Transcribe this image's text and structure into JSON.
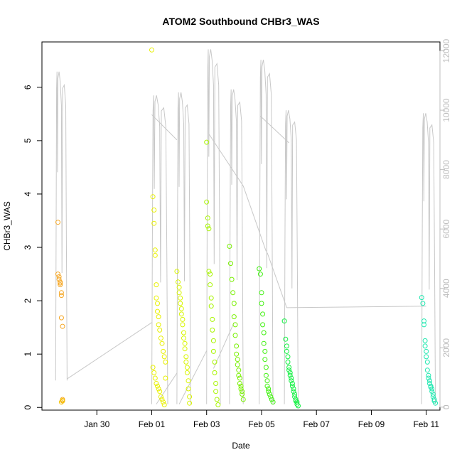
{
  "chart_data": {
    "type": "scatter",
    "title": "ATOM2 Southbound CHBr3_WAS",
    "xlabel": "Date",
    "ylabel": "CHBr3_WAS",
    "x_unit": "days",
    "xlim": [
      "2017-01-28T00:00",
      "2017-02-11T12:00"
    ],
    "ylim": [
      -0.05,
      6.85
    ],
    "y2lim": [
      -100,
      12300
    ],
    "x_ticks": [
      {
        "value": "2017-01-30",
        "label": "Jan 30"
      },
      {
        "value": "2017-02-01",
        "label": "Feb 01"
      },
      {
        "value": "2017-02-03",
        "label": "Feb 03"
      },
      {
        "value": "2017-02-05",
        "label": "Feb 05"
      },
      {
        "value": "2017-02-07",
        "label": "Feb 07"
      },
      {
        "value": "2017-02-09",
        "label": "Feb 09"
      },
      {
        "value": "2017-02-11",
        "label": "Feb 11"
      }
    ],
    "y_ticks": [
      "0",
      "1",
      "2",
      "3",
      "4",
      "5",
      "6"
    ],
    "y2_ticks": [
      "0",
      "2000",
      "4000",
      "6000",
      "8000",
      "10000",
      "12000"
    ],
    "altitude_series": {
      "color": "#c8c8c8",
      "segments": [
        {
          "start": "2017-01-28T12:00",
          "end": "2017-01-28T22:00",
          "peak": 11300,
          "base": 900
        },
        {
          "start": "2017-02-01T00:00",
          "end": "2017-02-01T14:00",
          "peak": 10500,
          "base": 100
        },
        {
          "start": "2017-02-01T22:00",
          "end": "2017-02-02T10:00",
          "peak": 10600,
          "base": 100
        },
        {
          "start": "2017-02-03T00:00",
          "end": "2017-02-03T12:00",
          "peak": 12050,
          "base": 100
        },
        {
          "start": "2017-02-03T20:00",
          "end": "2017-02-04T08:00",
          "peak": 10700,
          "base": 100
        },
        {
          "start": "2017-02-04T22:00",
          "end": "2017-02-05T10:00",
          "peak": 11700,
          "base": 100
        },
        {
          "start": "2017-02-05T20:00",
          "end": "2017-02-06T08:00",
          "peak": 10000,
          "base": 100
        },
        {
          "start": "2017-02-10T20:00",
          "end": "2017-02-11T08:00",
          "peak": 9900,
          "base": 100
        }
      ],
      "connectors": [
        {
          "from": "2017-01-28T22:00",
          "from_alt": 950,
          "to": "2017-02-01T00:00",
          "to_alt": 2850
        },
        {
          "from": "2017-02-01T00:00",
          "from_alt": 9850,
          "to": "2017-02-01T22:00",
          "to_alt": 9000
        },
        {
          "from": "2017-02-01T04:00",
          "from_alt": 100,
          "to": "2017-02-01T22:00",
          "to_alt": 1150
        },
        {
          "from": "2017-02-02T00:00",
          "from_alt": 100,
          "to": "2017-02-03T00:00",
          "to_alt": 1900
        },
        {
          "from": "2017-02-03T02:00",
          "from_alt": 9200,
          "to": "2017-02-04T08:00",
          "to_alt": 7450
        },
        {
          "from": "2017-02-03T06:00",
          "from_alt": 1300,
          "to": "2017-02-04T00:00",
          "to_alt": 2850
        },
        {
          "from": "2017-02-04T08:00",
          "from_alt": 7450,
          "to": "2017-02-05T04:00",
          "to_alt": 5250
        },
        {
          "from": "2017-02-04T23:00",
          "from_alt": 9800,
          "to": "2017-02-06T00:00",
          "to_alt": 8900
        },
        {
          "from": "2017-02-05T05:00",
          "from_alt": 5200,
          "to": "2017-02-05T22:00",
          "to_alt": 3350
        },
        {
          "from": "2017-02-05T22:00",
          "from_alt": 3350,
          "to": "2017-02-11T00:00",
          "to_alt": 3400
        }
      ]
    },
    "point_groups": [
      {
        "color": "#f5a623",
        "x": [
          "2017-01-28T14:00",
          "2017-01-28T14:00",
          "2017-01-28T15:00",
          "2017-01-28T15:00",
          "2017-01-28T16:00",
          "2017-01-28T16:00",
          "2017-01-28T16:00",
          "2017-01-28T17:00",
          "2017-01-28T17:00",
          "2017-01-28T17:00",
          "2017-01-28T18:00",
          "2017-01-28T18:00",
          "2017-01-28T18:00"
        ],
        "y": [
          3.47,
          2.5,
          2.45,
          2.4,
          2.35,
          2.3,
          2.33,
          2.15,
          2.1,
          1.68,
          1.52,
          0.15,
          0.12
        ]
      },
      {
        "color": "#f5c400",
        "x": [
          "2017-01-28T17:00",
          "2017-01-28T18:00"
        ],
        "y": [
          0.1,
          0.13
        ]
      },
      {
        "color": "#e8f000",
        "x": [
          "2017-02-01T00:00",
          "2017-02-01T01:00",
          "2017-02-01T02:00",
          "2017-02-01T02:00",
          "2017-02-01T03:00",
          "2017-02-01T03:00",
          "2017-02-01T04:00",
          "2017-02-01T04:00",
          "2017-02-01T05:00",
          "2017-02-01T05:00",
          "2017-02-01T06:00",
          "2017-02-01T06:00",
          "2017-02-01T07:00",
          "2017-02-01T08:00",
          "2017-02-01T09:00",
          "2017-02-01T10:00",
          "2017-02-01T11:00",
          "2017-02-01T12:00",
          "2017-02-01T01:00",
          "2017-02-01T02:00",
          "2017-02-01T03:00",
          "2017-02-01T04:00",
          "2017-02-01T05:00",
          "2017-02-01T06:00",
          "2017-02-01T07:00",
          "2017-02-01T08:00",
          "2017-02-01T09:00",
          "2017-02-01T10:00",
          "2017-02-01T11:00",
          "2017-02-01T12:00"
        ],
        "y": [
          6.7,
          3.95,
          3.7,
          3.45,
          2.95,
          2.85,
          2.3,
          2.05,
          1.95,
          1.8,
          1.7,
          1.55,
          1.45,
          1.3,
          1.2,
          1.05,
          0.95,
          0.85,
          0.75,
          0.65,
          0.55,
          0.45,
          0.4,
          0.35,
          0.3,
          0.2,
          0.15,
          0.1,
          0.05,
          0.55
        ]
      },
      {
        "color": "#d8f500",
        "x": [
          "2017-02-01T22:00",
          "2017-02-01T23:00",
          "2017-02-02T00:00",
          "2017-02-02T00:00",
          "2017-02-02T01:00",
          "2017-02-02T01:00",
          "2017-02-02T02:00",
          "2017-02-02T02:00",
          "2017-02-02T03:00",
          "2017-02-02T03:00",
          "2017-02-02T04:00",
          "2017-02-02T04:00",
          "2017-02-02T05:00",
          "2017-02-02T05:00",
          "2017-02-02T06:00",
          "2017-02-02T06:00",
          "2017-02-02T07:00",
          "2017-02-02T07:00",
          "2017-02-02T08:00",
          "2017-02-02T08:00",
          "2017-02-02T09:00",
          "2017-02-02T09:00"
        ],
        "y": [
          2.55,
          2.35,
          2.25,
          2.15,
          2.05,
          1.95,
          1.85,
          1.75,
          1.65,
          1.55,
          1.4,
          1.3,
          1.2,
          1.1,
          0.95,
          0.85,
          0.75,
          0.65,
          0.5,
          0.35,
          0.2,
          0.08
        ]
      },
      {
        "color": "#a8f500",
        "x": [
          "2017-02-03T00:00",
          "2017-02-03T00:00",
          "2017-02-03T01:00",
          "2017-02-03T01:00",
          "2017-02-03T02:00",
          "2017-02-03T02:00",
          "2017-02-03T03:00",
          "2017-02-03T03:00",
          "2017-02-03T04:00",
          "2017-02-03T04:00",
          "2017-02-03T05:00",
          "2017-02-03T05:00",
          "2017-02-03T06:00",
          "2017-02-03T06:00",
          "2017-02-03T07:00",
          "2017-02-03T07:00",
          "2017-02-03T08:00",
          "2017-02-03T08:00",
          "2017-02-03T09:00",
          "2017-02-03T10:00"
        ],
        "y": [
          4.97,
          3.85,
          3.55,
          3.4,
          3.35,
          2.55,
          2.5,
          2.3,
          2.05,
          1.9,
          1.65,
          1.45,
          1.25,
          1.05,
          0.85,
          0.65,
          0.45,
          0.3,
          0.15,
          0.05
        ]
      },
      {
        "color": "#78f000",
        "x": [
          "2017-02-03T20:00",
          "2017-02-03T21:00",
          "2017-02-03T22:00",
          "2017-02-03T23:00",
          "2017-02-04T00:00",
          "2017-02-04T00:00",
          "2017-02-04T01:00",
          "2017-02-04T01:00",
          "2017-02-04T02:00",
          "2017-02-04T02:00",
          "2017-02-04T03:00",
          "2017-02-04T03:00",
          "2017-02-04T04:00",
          "2017-02-04T04:00",
          "2017-02-04T05:00",
          "2017-02-04T05:00",
          "2017-02-04T06:00",
          "2017-02-04T06:00",
          "2017-02-04T07:00",
          "2017-02-04T07:00",
          "2017-02-04T08:00"
        ],
        "y": [
          3.02,
          2.7,
          2.4,
          2.15,
          1.95,
          1.7,
          1.55,
          1.35,
          1.15,
          1.0,
          0.9,
          0.8,
          0.7,
          0.6,
          0.55,
          0.45,
          0.4,
          0.35,
          0.3,
          0.25,
          0.15
        ]
      },
      {
        "color": "#40f010",
        "x": [
          "2017-02-04T22:00",
          "2017-02-04T23:00",
          "2017-02-05T00:00",
          "2017-02-05T00:00",
          "2017-02-05T01:00",
          "2017-02-05T01:00",
          "2017-02-05T02:00",
          "2017-02-05T02:00",
          "2017-02-05T03:00",
          "2017-02-05T03:00",
          "2017-02-05T04:00",
          "2017-02-05T04:00",
          "2017-02-05T05:00",
          "2017-02-05T05:00",
          "2017-02-05T06:00",
          "2017-02-05T06:00",
          "2017-02-05T07:00",
          "2017-02-05T08:00",
          "2017-02-05T09:00",
          "2017-02-05T10:00"
        ],
        "y": [
          2.6,
          2.5,
          2.15,
          1.95,
          1.75,
          1.55,
          1.4,
          1.2,
          1.05,
          0.9,
          0.75,
          0.6,
          0.5,
          0.4,
          0.35,
          0.3,
          0.25,
          0.2,
          0.15,
          0.1
        ]
      },
      {
        "color": "#10f040",
        "x": [
          "2017-02-05T20:00",
          "2017-02-05T21:00",
          "2017-02-05T22:00",
          "2017-02-05T22:00",
          "2017-02-05T23:00",
          "2017-02-05T23:00",
          "2017-02-06T00:00",
          "2017-02-06T00:00",
          "2017-02-06T01:00",
          "2017-02-06T01:00",
          "2017-02-06T02:00",
          "2017-02-06T02:00",
          "2017-02-06T03:00",
          "2017-02-06T03:00",
          "2017-02-06T04:00",
          "2017-02-06T04:00",
          "2017-02-06T05:00",
          "2017-02-06T05:00",
          "2017-02-06T06:00",
          "2017-02-06T06:00",
          "2017-02-06T07:00",
          "2017-02-06T07:00",
          "2017-02-06T08:00"
        ],
        "y": [
          1.62,
          1.28,
          1.15,
          1.05,
          0.95,
          0.85,
          0.75,
          0.7,
          0.65,
          0.6,
          0.55,
          0.5,
          0.45,
          0.4,
          0.35,
          0.3,
          0.25,
          0.2,
          0.15,
          0.12,
          0.1,
          0.06,
          0.03
        ]
      },
      {
        "color": "#20e8b0",
        "x": [
          "2017-02-10T20:00",
          "2017-02-10T21:00",
          "2017-02-10T22:00",
          "2017-02-10T22:00",
          "2017-02-10T23:00",
          "2017-02-10T23:00",
          "2017-02-11T00:00",
          "2017-02-11T00:00",
          "2017-02-11T01:00",
          "2017-02-11T01:00",
          "2017-02-11T02:00",
          "2017-02-11T02:00",
          "2017-02-11T03:00",
          "2017-02-11T03:00",
          "2017-02-11T04:00",
          "2017-02-11T04:00",
          "2017-02-11T05:00",
          "2017-02-11T05:00",
          "2017-02-11T06:00",
          "2017-02-11T06:00",
          "2017-02-11T07:00",
          "2017-02-11T07:00",
          "2017-02-11T08:00"
        ],
        "y": [
          2.06,
          1.95,
          1.62,
          1.55,
          1.25,
          1.15,
          1.05,
          0.95,
          0.85,
          0.7,
          0.6,
          0.55,
          0.5,
          0.45,
          0.4,
          0.38,
          0.35,
          0.3,
          0.25,
          0.2,
          0.15,
          0.12,
          0.08
        ]
      }
    ]
  }
}
